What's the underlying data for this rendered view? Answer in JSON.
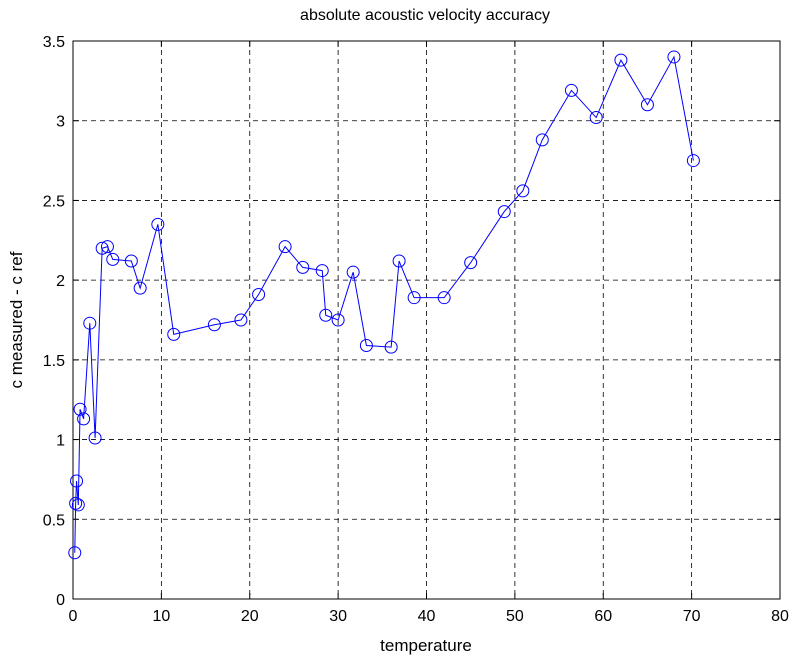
{
  "chart_data": {
    "type": "line",
    "title": "absolute acoustic velocity accuracy",
    "xlabel": "temperature",
    "ylabel": "c measured - c ref",
    "xlim": [
      0,
      80
    ],
    "ylim": [
      0,
      3.5
    ],
    "xticks": [
      0,
      10,
      20,
      30,
      40,
      50,
      60,
      70,
      80
    ],
    "yticks": [
      0,
      0.5,
      1,
      1.5,
      2,
      2.5,
      3,
      3.5
    ],
    "grid": true,
    "grid_style": "dashed",
    "marker": "circle",
    "line_color": "#0000ff",
    "series": [
      {
        "x": [
          0.2,
          0.3,
          0.4,
          0.6,
          0.8,
          1.2,
          1.9,
          2.5,
          3.3,
          3.9,
          4.5,
          6.6,
          7.6,
          9.6,
          11.4,
          16.0,
          19.0,
          21.0,
          24.0,
          26.0,
          28.2,
          28.6,
          30.0,
          31.7,
          33.2,
          36.0,
          36.9,
          38.6,
          42.0,
          45.0,
          48.8,
          50.9,
          53.1,
          56.4,
          59.2,
          62.0,
          65.0,
          68.0,
          70.2
        ],
        "y": [
          0.29,
          0.6,
          0.74,
          0.59,
          1.19,
          1.13,
          1.73,
          1.01,
          2.2,
          2.21,
          2.13,
          2.12,
          1.95,
          2.35,
          1.66,
          1.72,
          1.75,
          1.91,
          2.21,
          2.08,
          2.06,
          1.78,
          1.75,
          2.05,
          1.59,
          1.58,
          2.12,
          1.89,
          1.89,
          2.11,
          2.43,
          2.56,
          2.88,
          3.19,
          3.02,
          3.38,
          3.1,
          3.4,
          2.75
        ]
      }
    ]
  }
}
